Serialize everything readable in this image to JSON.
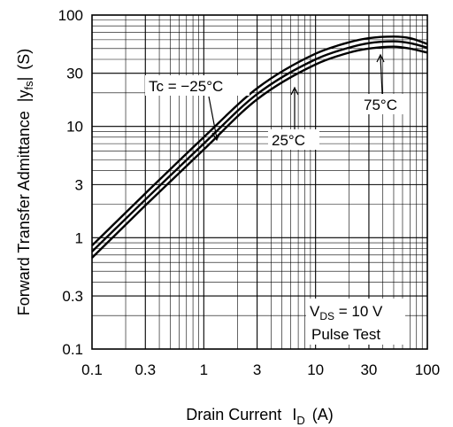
{
  "chart_data": {
    "type": "line",
    "title": "",
    "xlabel": {
      "main": "Drain Current",
      "symbol": "I",
      "subscript": "D",
      "unit": "(A)"
    },
    "ylabel": {
      "main": "Forward Transfer Admittance",
      "symbol": "|y",
      "subscript": "fs",
      "close": "|",
      "unit": "(S)"
    },
    "x_scale": "log",
    "y_scale": "log",
    "xlim": [
      0.1,
      100
    ],
    "ylim": [
      0.1,
      100
    ],
    "grid": true,
    "x_ticks": [
      {
        "value": 0.1,
        "label": "0.1"
      },
      {
        "value": 0.3,
        "label": "0.3"
      },
      {
        "value": 1,
        "label": "1"
      },
      {
        "value": 3,
        "label": "3"
      },
      {
        "value": 10,
        "label": "10"
      },
      {
        "value": 30,
        "label": "30"
      },
      {
        "value": 100,
        "label": "100"
      }
    ],
    "y_ticks": [
      {
        "value": 0.1,
        "label": "0.1"
      },
      {
        "value": 0.3,
        "label": "0.3"
      },
      {
        "value": 1,
        "label": "1"
      },
      {
        "value": 3,
        "label": "3"
      },
      {
        "value": 10,
        "label": "10"
      },
      {
        "value": 30,
        "label": "30"
      },
      {
        "value": 100,
        "label": "100"
      }
    ],
    "series": [
      {
        "name": "Tc = −25°C",
        "x": [
          0.1,
          0.3,
          1,
          3,
          10,
          20,
          30,
          50,
          70,
          100
        ],
        "y": [
          0.85,
          2.5,
          8,
          22,
          45,
          57,
          62,
          64,
          62,
          55
        ]
      },
      {
        "name": "25°C",
        "x": [
          0.1,
          0.3,
          1,
          3,
          10,
          20,
          30,
          50,
          70,
          100
        ],
        "y": [
          0.75,
          2.2,
          7,
          19.5,
          40,
          51,
          56,
          58,
          56,
          51
        ]
      },
      {
        "name": "75°C",
        "x": [
          0.1,
          0.3,
          1,
          3,
          10,
          20,
          30,
          50,
          70,
          100
        ],
        "y": [
          0.66,
          1.95,
          6.2,
          17.5,
          36,
          46,
          50,
          52,
          50,
          46
        ]
      }
    ],
    "annotations": [
      {
        "text": "Tc = −25°C"
      },
      {
        "text": "25°C"
      },
      {
        "text": "75°C"
      }
    ],
    "condition_box": {
      "line1": {
        "prefix": "V",
        "subscript": "DS",
        "suffix": " = 10 V"
      },
      "line2": "Pulse Test"
    }
  }
}
